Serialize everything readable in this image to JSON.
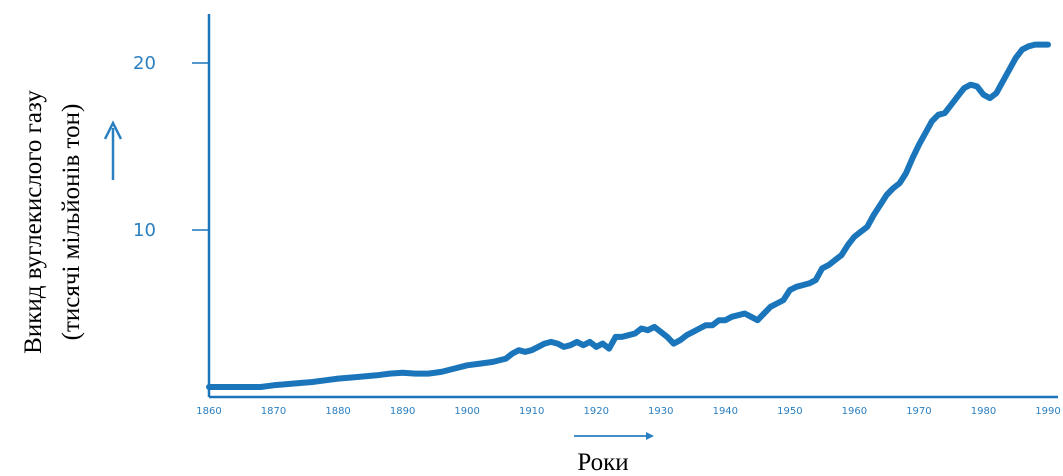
{
  "chart_data": {
    "type": "line",
    "xlabel": "Роки",
    "ylabel_line1": "Викид вуглекислого газу",
    "ylabel_line2": "(тисячі мільйонів тон)",
    "xlim": [
      1860,
      1990
    ],
    "ylim": [
      0,
      22
    ],
    "x_ticks": [
      1860,
      1870,
      1880,
      1890,
      1900,
      1910,
      1920,
      1930,
      1940,
      1950,
      1960,
      1970,
      1980,
      1990
    ],
    "x_tick_labels": [
      "1860",
      "1870",
      "1880",
      "1890",
      "1900",
      "1910",
      "1920",
      "1930",
      "1940",
      "1950",
      "1960",
      "1970",
      "1980",
      "1990"
    ],
    "y_ticks": [
      10,
      20
    ],
    "y_tick_labels": [
      "10",
      "20"
    ],
    "grid": false,
    "series": [
      {
        "x": [
          1860,
          1862,
          1865,
          1868,
          1870,
          1873,
          1876,
          1878,
          1880,
          1883,
          1886,
          1888,
          1890,
          1892,
          1894,
          1896,
          1898,
          1900,
          1902,
          1904,
          1906,
          1907,
          1908,
          1909,
          1910,
          1911,
          1912,
          1913,
          1914,
          1915,
          1916,
          1917,
          1918,
          1919,
          1920,
          1921,
          1922,
          1923,
          1924,
          1925,
          1926,
          1927,
          1928,
          1929,
          1930,
          1931,
          1932,
          1933,
          1934,
          1935,
          1936,
          1937,
          1938,
          1939,
          1940,
          1941,
          1942,
          1943,
          1944,
          1945,
          1946,
          1947,
          1948,
          1949,
          1950,
          1951,
          1952,
          1953,
          1954,
          1955,
          1956,
          1957,
          1958,
          1959,
          1960,
          1961,
          1962,
          1963,
          1964,
          1965,
          1966,
          1967,
          1968,
          1969,
          1970,
          1971,
          1972,
          1973,
          1974,
          1975,
          1976,
          1977,
          1978,
          1979,
          1980,
          1981,
          1982,
          1983,
          1984,
          1985,
          1986,
          1987,
          1988,
          1989,
          1990
        ],
        "values": [
          0.6,
          0.6,
          0.6,
          0.6,
          0.7,
          0.8,
          0.9,
          1.0,
          1.1,
          1.2,
          1.3,
          1.4,
          1.45,
          1.4,
          1.4,
          1.5,
          1.7,
          1.9,
          2.0,
          2.1,
          2.3,
          2.6,
          2.8,
          2.7,
          2.8,
          3.0,
          3.2,
          3.3,
          3.2,
          3.0,
          3.1,
          3.3,
          3.1,
          3.3,
          3.0,
          3.2,
          2.9,
          3.6,
          3.6,
          3.7,
          3.8,
          4.1,
          4.0,
          4.2,
          3.9,
          3.6,
          3.2,
          3.4,
          3.7,
          3.9,
          4.1,
          4.3,
          4.3,
          4.6,
          4.6,
          4.8,
          4.9,
          5.0,
          4.8,
          4.6,
          5.0,
          5.4,
          5.6,
          5.8,
          6.4,
          6.6,
          6.7,
          6.8,
          7.0,
          7.7,
          7.9,
          8.2,
          8.5,
          9.1,
          9.6,
          9.9,
          10.2,
          10.9,
          11.5,
          12.1,
          12.5,
          12.8,
          13.4,
          14.3,
          15.1,
          15.8,
          16.5,
          16.9,
          17.0,
          17.5,
          18.0,
          18.5,
          18.7,
          18.6,
          18.1,
          17.9,
          18.2,
          18.9,
          19.6,
          20.3,
          20.8,
          21.0,
          21.1,
          21.1,
          21.1
        ]
      }
    ]
  },
  "colors": {
    "line": "#1a75bb",
    "axis": "#1a75bb",
    "tick_label": "#2a7fc0",
    "arrow": "#2a7fc0"
  }
}
